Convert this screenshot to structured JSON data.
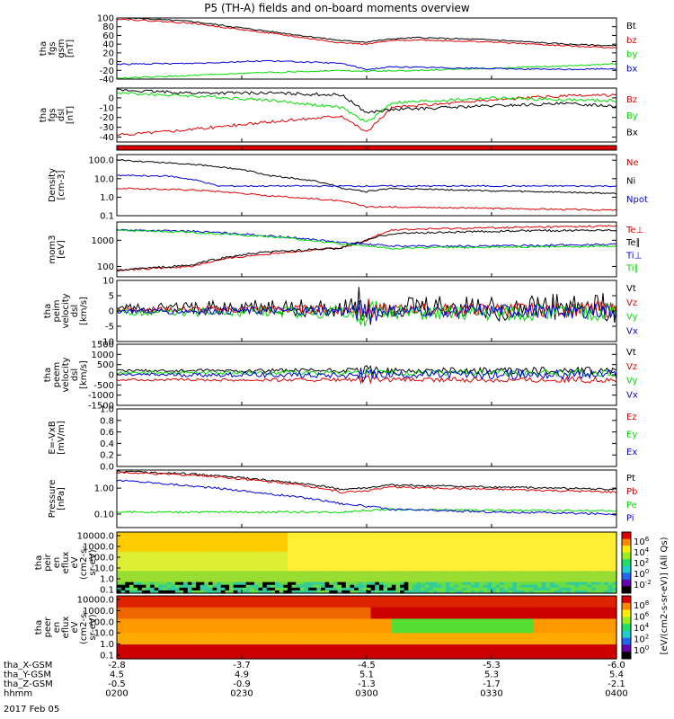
{
  "title": "P5 (TH-A) fields and on-board moments overview",
  "date": "2017 Feb 05",
  "colors": {
    "black": "#000000",
    "red": "#e00000",
    "green": "#00dd00",
    "blue": "#0000dd"
  },
  "chart_data": [
    {
      "type": "line",
      "panel": "fgs_gsm",
      "ylabel": [
        "tha",
        "fgs",
        "gsm",
        "[nT]"
      ],
      "ylim": [
        -40,
        100
      ],
      "yticks": [
        -40,
        -20,
        0,
        20,
        40,
        60,
        80,
        100
      ],
      "series": [
        {
          "name": "Bt",
          "color": "#000000",
          "x": [
            0,
            0.15,
            0.3,
            0.45,
            0.5,
            0.55,
            0.6,
            0.75,
            0.9,
            1
          ],
          "values": [
            102,
            92,
            70,
            48,
            45,
            52,
            55,
            50,
            40,
            36
          ]
        },
        {
          "name": "bz",
          "color": "#e00000",
          "x": [
            0,
            0.15,
            0.3,
            0.45,
            0.5,
            0.55,
            0.6,
            0.75,
            0.9,
            1
          ],
          "values": [
            98,
            88,
            66,
            43,
            40,
            48,
            50,
            45,
            36,
            32
          ]
        },
        {
          "name": "by",
          "color": "#00dd00",
          "x": [
            0,
            0.15,
            0.3,
            0.45,
            0.5,
            0.6,
            0.75,
            0.9,
            1
          ],
          "values": [
            -38,
            -32,
            -25,
            -20,
            -22,
            -20,
            -15,
            -10,
            -5
          ]
        },
        {
          "name": "bx",
          "color": "#0000dd",
          "x": [
            0,
            0.15,
            0.3,
            0.45,
            0.5,
            0.55,
            0.75,
            0.9,
            1
          ],
          "values": [
            -6,
            -4,
            2,
            -4,
            -18,
            -12,
            -16,
            -18,
            -16
          ]
        }
      ]
    },
    {
      "type": "line",
      "panel": "fgs_dsl",
      "ylabel": [
        "tha",
        "fgs",
        "dsl",
        "[nT]"
      ],
      "ylim": [
        -45,
        10
      ],
      "yticks": [
        -40,
        -30,
        -20,
        -10,
        0
      ],
      "series": [
        {
          "name": "Bz",
          "color": "#e00000",
          "x": [
            0,
            0.15,
            0.3,
            0.45,
            0.5,
            0.55,
            0.75,
            0.9,
            1
          ],
          "values": [
            -38,
            -32,
            -25,
            -18,
            -35,
            -10,
            -2,
            2,
            3
          ]
        },
        {
          "name": "By",
          "color": "#00dd00",
          "x": [
            0,
            0.15,
            0.3,
            0.45,
            0.5,
            0.55,
            0.75,
            0.9,
            1
          ],
          "values": [
            5,
            2,
            -2,
            -10,
            -25,
            -5,
            0,
            -2,
            -3
          ]
        },
        {
          "name": "Bx",
          "color": "#000000",
          "x": [
            0,
            0.15,
            0.3,
            0.45,
            0.5,
            0.55,
            0.75,
            0.9,
            1
          ],
          "values": [
            8,
            5,
            5,
            3,
            -15,
            -12,
            -8,
            -6,
            -8
          ]
        }
      ]
    },
    {
      "type": "area",
      "panel": "mode_bar",
      "series": [
        {
          "name": "mode",
          "color": "#e00000"
        }
      ]
    },
    {
      "type": "line",
      "panel": "density",
      "log": true,
      "ylabel": [
        "Density",
        "[cm-3]"
      ],
      "ylim": [
        0.1,
        200
      ],
      "yticks": [
        "0.1",
        "1.0",
        "10.0",
        "100.0"
      ],
      "series": [
        {
          "name": "Ne",
          "color": "#e00000",
          "x": [
            0,
            0.15,
            0.3,
            0.45,
            0.5,
            0.55,
            0.75,
            1
          ],
          "values": [
            3,
            2.5,
            1.2,
            0.6,
            0.3,
            0.3,
            0.25,
            0.2
          ]
        },
        {
          "name": "Ni",
          "color": "#000000",
          "x": [
            0,
            0.15,
            0.3,
            0.45,
            0.5,
            0.55,
            0.75,
            1
          ],
          "values": [
            100,
            60,
            15,
            3,
            2,
            3,
            2.2,
            1.6
          ]
        },
        {
          "name": "Npot",
          "color": "#0000dd",
          "x": [
            0,
            0.1,
            0.2,
            0.3
          ],
          "values": [
            15,
            14,
            4,
            4
          ]
        }
      ]
    },
    {
      "type": "line",
      "panel": "temp",
      "log": true,
      "ylabel": [
        "mom3",
        "[eV]"
      ],
      "ylim": [
        40,
        5000
      ],
      "yticks": [
        "100",
        "1000"
      ],
      "series": [
        {
          "name": "Te⊥",
          "color": "#e00000",
          "x": [
            0,
            0.15,
            0.3,
            0.45,
            0.5,
            0.55,
            0.75,
            1
          ],
          "values": [
            70,
            100,
            300,
            500,
            900,
            2500,
            3000,
            3500
          ]
        },
        {
          "name": "Te∥",
          "color": "#000000",
          "x": [
            0,
            0.15,
            0.3,
            0.45,
            0.5,
            0.55,
            0.75,
            1
          ],
          "values": [
            70,
            110,
            350,
            500,
            1000,
            1800,
            2200,
            2500
          ]
        },
        {
          "name": "Ti⊥",
          "color": "#0000dd",
          "x": [
            0,
            0.15,
            0.3,
            0.45,
            0.5,
            0.55,
            0.75,
            1
          ],
          "values": [
            2500,
            2200,
            1500,
            800,
            700,
            600,
            600,
            700
          ]
        },
        {
          "name": "Ti∥",
          "color": "#00dd00",
          "x": [
            0,
            0.15,
            0.3,
            0.45,
            0.5,
            0.55,
            0.75,
            1
          ],
          "values": [
            2400,
            2000,
            1400,
            700,
            600,
            500,
            550,
            600
          ]
        }
      ]
    },
    {
      "type": "line",
      "panel": "peim_velocity",
      "ylabel": [
        "tha",
        "peim",
        "velocity",
        "dsl",
        "[km/s]"
      ],
      "ylim": [
        -10,
        10
      ],
      "yticks": [
        -10,
        -5,
        0,
        5,
        10
      ],
      "series": [
        {
          "name": "Vt",
          "color": "#000000",
          "base": 1,
          "noise": 4
        },
        {
          "name": "Vz",
          "color": "#e00000",
          "base": 0.5,
          "noise": 2
        },
        {
          "name": "Vy",
          "color": "#00dd00",
          "base": -0.5,
          "noise": 2.5
        },
        {
          "name": "Vx",
          "color": "#0000dd",
          "base": 0,
          "noise": 2
        }
      ]
    },
    {
      "type": "line",
      "panel": "peem_velocity",
      "ylabel": [
        "tha",
        "peem",
        "velocity",
        "dsl",
        "[km/s]"
      ],
      "ylim": [
        -1500,
        1500
      ],
      "yticks": [
        -1500,
        -1000,
        -500,
        0,
        500,
        1000,
        1500
      ],
      "series": [
        {
          "name": "Vt",
          "color": "#000000",
          "base": 200,
          "noise": 150
        },
        {
          "name": "Vz",
          "color": "#e00000",
          "base": -250,
          "noise": 120
        },
        {
          "name": "Vy",
          "color": "#00dd00",
          "base": 100,
          "noise": 150
        },
        {
          "name": "Vx",
          "color": "#0000dd",
          "base": 0,
          "noise": 200
        }
      ]
    },
    {
      "type": "line",
      "panel": "efield",
      "ylabel": [
        "E=-VxB",
        "[mV/m]"
      ],
      "ylim": [
        0,
        1
      ],
      "yticks": [
        "0.0",
        "0.2",
        "0.4",
        "0.6",
        "0.8",
        "1.0"
      ],
      "series": [
        {
          "name": "Ez",
          "color": "#e00000"
        },
        {
          "name": "Ey",
          "color": "#00dd00"
        },
        {
          "name": "Ex",
          "color": "#0000dd"
        }
      ]
    },
    {
      "type": "line",
      "panel": "pressure",
      "log": true,
      "ylabel": [
        "Pressure",
        "[nPa]"
      ],
      "ylim": [
        0.03,
        5
      ],
      "yticks": [
        "0.10",
        "1.00"
      ],
      "series": [
        {
          "name": "Pt",
          "color": "#000000",
          "x": [
            0,
            0.15,
            0.3,
            0.45,
            0.5,
            0.55,
            0.75,
            1
          ],
          "values": [
            4.5,
            3.5,
            2,
            0.9,
            1,
            1.3,
            1.1,
            0.9
          ]
        },
        {
          "name": "Pb",
          "color": "#e00000",
          "x": [
            0,
            0.15,
            0.3,
            0.45,
            0.5,
            0.55,
            0.75,
            1
          ],
          "values": [
            4,
            3.2,
            1.8,
            0.7,
            0.8,
            1.1,
            0.9,
            0.7
          ]
        },
        {
          "name": "Pe",
          "color": "#00dd00",
          "x": [
            0,
            0.15,
            0.3,
            0.45,
            0.5,
            0.55,
            0.75,
            1
          ],
          "values": [
            0.12,
            0.12,
            0.12,
            0.12,
            0.14,
            0.15,
            0.14,
            0.13
          ]
        },
        {
          "name": "Pi",
          "color": "#0000dd",
          "x": [
            0,
            0.15,
            0.3,
            0.45,
            0.5,
            0.55,
            0.75,
            1
          ],
          "values": [
            2,
            1.2,
            0.6,
            0.25,
            0.2,
            0.15,
            0.12,
            0.1
          ]
        }
      ]
    },
    {
      "type": "heatmap",
      "panel": "peir_spectrogram",
      "ylabel": [
        "tha",
        "peir",
        "en",
        "eflux",
        "eV",
        "(cm2-s-",
        "sr-eV)"
      ],
      "yticks": [
        "0.1",
        "1.0",
        "10.0",
        "100.0",
        "1000.0",
        "10000.0"
      ]
    },
    {
      "type": "heatmap",
      "panel": "peer_spectrogram",
      "ylabel": [
        "tha",
        "peer",
        "en",
        "eflux",
        "eV",
        "(cm2-s-",
        "sr-eV)"
      ],
      "yticks": [
        "0.1",
        "1.0",
        "10.0",
        "100.0",
        "1000.0",
        "10000.0"
      ]
    }
  ],
  "colorbar": {
    "label": "[eV/(cm2-s-sr-eV)] (All Qs)",
    "ticks_top": [
      "10^6",
      "10^4",
      "10^2",
      "10^0",
      "10^-2"
    ],
    "ticks_bottom": [
      "10^8",
      "10^6",
      "10^4",
      "10^2",
      "10^0"
    ]
  },
  "xaxis": {
    "row_labels": [
      "tha_X-GSM",
      "tha_Y-GSM",
      "tha_Z-GSM",
      "hhmm"
    ],
    "columns": [
      {
        "X": "-2.8",
        "Y": "4.5",
        "Z": "-0.5",
        "hhmm": "0200"
      },
      {
        "X": "-3.7",
        "Y": "4.9",
        "Z": "-0.9",
        "hhmm": "0230"
      },
      {
        "X": "-4.5",
        "Y": "5.1",
        "Z": "-1.3",
        "hhmm": "0300"
      },
      {
        "X": "-5.3",
        "Y": "5.3",
        "Z": "-1.7",
        "hhmm": "0330"
      },
      {
        "X": "-6.0",
        "Y": "5.4",
        "Z": "-2.1",
        "hhmm": "0400"
      }
    ]
  }
}
